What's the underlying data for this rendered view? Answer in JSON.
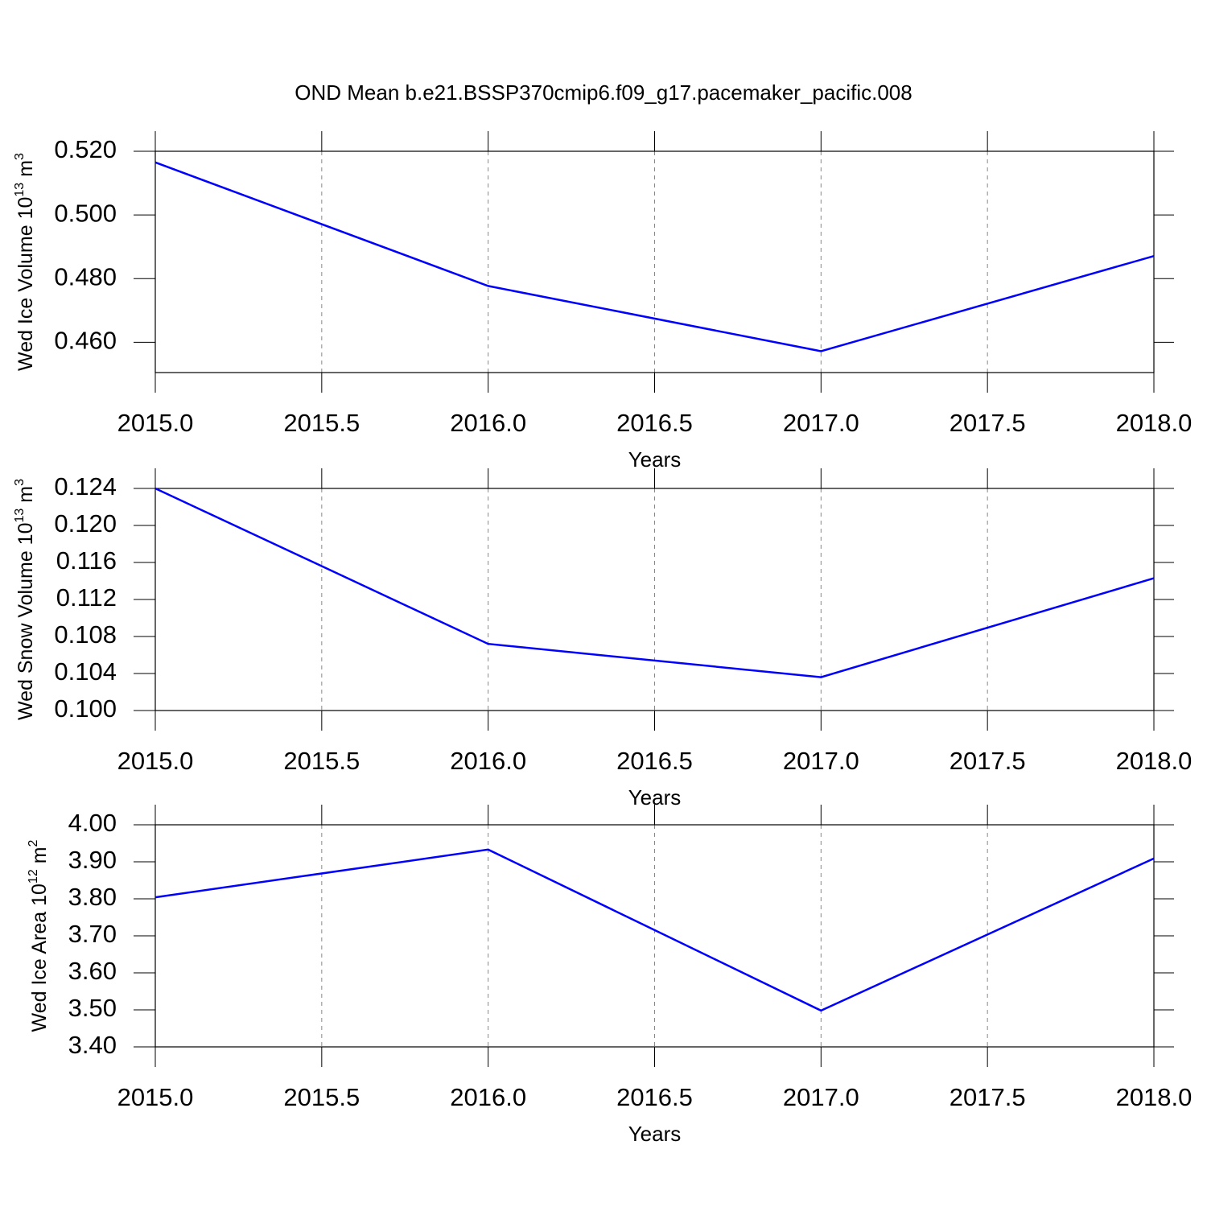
{
  "chart_data": [
    {
      "type": "line",
      "title": "OND Mean b.e21.BSSP370cmip6.f09_g17.pacemaker_pacific.008",
      "xlabel": "Years",
      "ylabel": [
        "Wed Ice Volume 10",
        "13",
        "m",
        "3"
      ],
      "x": [
        2015,
        2016,
        2017,
        2018
      ],
      "values": [
        0.5165,
        0.4777,
        0.4572,
        0.4871
      ],
      "color": "#0000ff",
      "xlim": [
        2015,
        2018
      ],
      "ylim": [
        0.4505,
        0.52
      ],
      "xticks": [
        {
          "value": 2015,
          "label": "2015.0"
        },
        {
          "value": 2015.5,
          "label": "2015.5"
        },
        {
          "value": 2016,
          "label": "2016.0"
        },
        {
          "value": 2016.5,
          "label": "2016.5"
        },
        {
          "value": 2017,
          "label": "2017.0"
        },
        {
          "value": 2017.5,
          "label": "2017.5"
        },
        {
          "value": 2018,
          "label": "2018.0"
        }
      ],
      "yticks": [
        {
          "value": 0.46,
          "label": "0.460"
        },
        {
          "value": 0.48,
          "label": "0.480"
        },
        {
          "value": 0.5,
          "label": "0.500"
        },
        {
          "value": 0.52,
          "label": "0.520"
        }
      ],
      "grid": true
    },
    {
      "type": "line",
      "xlabel": "Years",
      "ylabel": [
        "Wed Snow Volume 10",
        "13",
        "m",
        "3"
      ],
      "x": [
        2015,
        2016,
        2017,
        2018
      ],
      "values": [
        0.124,
        0.1072,
        0.1036,
        0.1143
      ],
      "color": "#0000ff",
      "xlim": [
        2015,
        2018
      ],
      "ylim": [
        0.1,
        0.124
      ],
      "xticks": [
        {
          "value": 2015,
          "label": "2015.0"
        },
        {
          "value": 2015.5,
          "label": "2015.5"
        },
        {
          "value": 2016,
          "label": "2016.0"
        },
        {
          "value": 2016.5,
          "label": "2016.5"
        },
        {
          "value": 2017,
          "label": "2017.0"
        },
        {
          "value": 2017.5,
          "label": "2017.5"
        },
        {
          "value": 2018,
          "label": "2018.0"
        }
      ],
      "yticks": [
        {
          "value": 0.1,
          "label": "0.100"
        },
        0.104,
        0.108,
        0.112,
        0.116,
        {
          "value": 0.12,
          "label": "0.120"
        },
        0.124
      ],
      "grid": true
    },
    {
      "type": "line",
      "xlabel": "Years",
      "ylabel": [
        "Wed Ice Area 10",
        "12",
        "m",
        "2"
      ],
      "x": [
        2015,
        2016,
        2017,
        2018
      ],
      "values": [
        3.804,
        3.933,
        3.498,
        3.909
      ],
      "color": "#0000ff",
      "xlim": [
        2015,
        2018
      ],
      "ylim": [
        3.4,
        4.0
      ],
      "xticks": [
        {
          "value": 2015,
          "label": "2015.0"
        },
        {
          "value": 2015.5,
          "label": "2015.5"
        },
        {
          "value": 2016,
          "label": "2016.0"
        },
        {
          "value": 2016.5,
          "label": "2016.5"
        },
        {
          "value": 2017,
          "label": "2017.0"
        },
        {
          "value": 2017.5,
          "label": "2017.5"
        },
        {
          "value": 2018,
          "label": "2018.0"
        }
      ],
      "yticks": [
        {
          "value": 3.4,
          "label": "3.40"
        },
        {
          "value": 3.5,
          "label": "3.50"
        },
        {
          "value": 3.6,
          "label": "3.60"
        },
        {
          "value": 3.7,
          "label": "3.70"
        },
        {
          "value": 3.8,
          "label": "3.80"
        },
        {
          "value": 3.9,
          "label": "3.90"
        },
        {
          "value": 4.0,
          "label": "4.00"
        }
      ],
      "grid": true
    }
  ]
}
